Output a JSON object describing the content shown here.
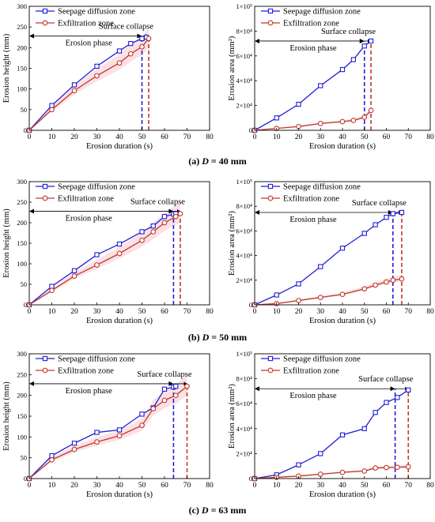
{
  "captions": [
    {
      "prefix": "(a) ",
      "var": "D",
      "rest": " = 40 mm"
    },
    {
      "prefix": "(b) ",
      "var": "D",
      "rest": " = 50 mm"
    },
    {
      "prefix": "(c) ",
      "var": "D",
      "rest": " = 63 mm"
    }
  ],
  "colors": {
    "seepage": "#1f1fd6",
    "exfiltration": "#c0392b",
    "band": "#f6c9cf"
  },
  "chart_data": [
    {
      "type": "line",
      "panel": "a-height",
      "xlabel": "Erosion duration (s)",
      "ylabel": "Erosion height (mm)",
      "xlim": [
        0,
        80
      ],
      "ylim": [
        0,
        300
      ],
      "xticks": [
        "0",
        "10",
        "20",
        "30",
        "40",
        "50",
        "60",
        "70",
        "80"
      ],
      "yticks": [
        "0",
        "50",
        "100",
        "150",
        "200",
        "250",
        "300"
      ],
      "series": [
        {
          "name": "Seepage diffusion zone",
          "x": [
            0,
            10,
            20,
            30,
            40,
            45,
            50,
            52
          ],
          "y": [
            0,
            60,
            110,
            155,
            192,
            210,
            222,
            225
          ]
        },
        {
          "name": "Exfiltration zone",
          "x": [
            0,
            10,
            20,
            30,
            40,
            45,
            50,
            53
          ],
          "y": [
            0,
            50,
            96,
            132,
            163,
            185,
            202,
            222
          ]
        }
      ],
      "vlines": [
        50,
        53
      ],
      "annotations": {
        "phase": "Erosion phase",
        "collapse": "Surface collapse",
        "phase_level": 228
      }
    },
    {
      "type": "line",
      "panel": "a-area",
      "xlabel": "Erosion duration (s)",
      "ylabel": "Erosion area (mm²)",
      "xlim": [
        0,
        80
      ],
      "ylim": [
        0,
        100000
      ],
      "xticks": [
        "0",
        "10",
        "20",
        "30",
        "40",
        "50",
        "60",
        "70",
        "80"
      ],
      "yticks": [
        "0",
        "2×10⁴",
        "4×10⁴",
        "6×10⁴",
        "8×10⁴",
        "1×10⁵"
      ],
      "series": [
        {
          "name": "Seepage diffusion zone",
          "x": [
            0,
            10,
            20,
            30,
            40,
            45,
            50,
            53
          ],
          "y": [
            0,
            10000,
            21000,
            36000,
            49000,
            57000,
            68000,
            72000
          ]
        },
        {
          "name": "Exfiltration zone",
          "x": [
            0,
            10,
            20,
            30,
            40,
            45,
            50,
            53
          ],
          "y": [
            0,
            1500,
            3000,
            5500,
            7000,
            8000,
            10500,
            16000
          ]
        }
      ],
      "vlines": [
        50,
        53
      ],
      "annotations": {
        "phase": "Erosion phase",
        "collapse": "Surface collapse",
        "phase_level": 72000
      }
    },
    {
      "type": "line",
      "panel": "b-height",
      "xlabel": "Erosion duration (s)",
      "ylabel": "Erosion height (mm)",
      "xlim": [
        0,
        80
      ],
      "ylim": [
        0,
        300
      ],
      "xticks": [
        "0",
        "10",
        "20",
        "30",
        "40",
        "50",
        "60",
        "70",
        "80"
      ],
      "yticks": [
        "0",
        "50",
        "100",
        "150",
        "200",
        "250",
        "300"
      ],
      "series": [
        {
          "name": "Seepage diffusion zone",
          "x": [
            0,
            10,
            20,
            30,
            40,
            50,
            55,
            60,
            64,
            65
          ],
          "y": [
            0,
            45,
            83,
            122,
            148,
            178,
            192,
            215,
            221,
            222
          ]
        },
        {
          "name": "Exfiltration zone",
          "x": [
            0,
            10,
            20,
            30,
            40,
            50,
            55,
            60,
            65,
            67
          ],
          "y": [
            0,
            35,
            70,
            97,
            125,
            157,
            178,
            200,
            215,
            222
          ]
        }
      ],
      "vlines": [
        64,
        67
      ],
      "annotations": {
        "phase": "Erosion phase",
        "collapse": "Surface collapse",
        "phase_level": 228
      }
    },
    {
      "type": "line",
      "panel": "b-area",
      "xlabel": "Erosion duration (s)",
      "ylabel": "Erosion area (mm²)",
      "xlim": [
        0,
        80
      ],
      "ylim": [
        0,
        100000
      ],
      "xticks": [
        "0",
        "10",
        "20",
        "30",
        "40",
        "50",
        "60",
        "70",
        "80"
      ],
      "yticks": [
        "0",
        "2×10⁴",
        "4×10⁴",
        "6×10⁴",
        "8×10⁴",
        "1×10⁵"
      ],
      "series": [
        {
          "name": "Seepage diffusion zone",
          "x": [
            0,
            10,
            20,
            30,
            40,
            50,
            55,
            60,
            63,
            67
          ],
          "y": [
            0,
            8000,
            17000,
            31000,
            46000,
            58000,
            65000,
            71000,
            74000,
            75000
          ]
        },
        {
          "name": "Exfiltration zone",
          "x": [
            0,
            10,
            20,
            30,
            40,
            50,
            55,
            60,
            63,
            67
          ],
          "y": [
            0,
            1000,
            3500,
            6000,
            8500,
            13000,
            16000,
            18500,
            20000,
            21000
          ]
        }
      ],
      "vlines": [
        63,
        67
      ],
      "annotations": {
        "phase": "Erosion phase",
        "collapse": "Surface collapse",
        "phase_level": 75000
      }
    },
    {
      "type": "line",
      "panel": "c-height",
      "xlabel": "Erosion duration (s)",
      "ylabel": "Erosion height (mm)",
      "xlim": [
        0,
        80
      ],
      "ylim": [
        0,
        300
      ],
      "xticks": [
        "0",
        "10",
        "20",
        "30",
        "40",
        "50",
        "60",
        "70",
        "80"
      ],
      "yticks": [
        "0",
        "50",
        "100",
        "150",
        "200",
        "250",
        "300"
      ],
      "series": [
        {
          "name": "Seepage diffusion zone",
          "x": [
            0,
            10,
            20,
            30,
            40,
            50,
            55,
            60,
            64,
            65
          ],
          "y": [
            0,
            55,
            85,
            111,
            117,
            155,
            170,
            215,
            220,
            222
          ]
        },
        {
          "name": "Exfiltration zone",
          "x": [
            0,
            10,
            20,
            30,
            40,
            50,
            55,
            60,
            65,
            70
          ],
          "y": [
            0,
            45,
            70,
            88,
            103,
            128,
            168,
            188,
            200,
            222
          ]
        }
      ],
      "vlines": [
        64,
        70
      ],
      "annotations": {
        "phase": "Erosion phase",
        "collapse": "Surface collapse",
        "phase_level": 228
      }
    },
    {
      "type": "line",
      "panel": "c-area",
      "xlabel": "Erosion duration (s)",
      "ylabel": "Erosion area (mm²)",
      "xlim": [
        0,
        80
      ],
      "ylim": [
        0,
        100000
      ],
      "xticks": [
        "0",
        "10",
        "20",
        "30",
        "40",
        "50",
        "60",
        "70",
        "80"
      ],
      "yticks": [
        "0",
        "2×10⁴",
        "4×10⁴",
        "6×10⁴",
        "8×10⁴",
        "1×10⁵"
      ],
      "series": [
        {
          "name": "Seepage diffusion zone",
          "x": [
            0,
            10,
            20,
            30,
            40,
            50,
            55,
            60,
            65,
            70
          ],
          "y": [
            0,
            3000,
            11000,
            20000,
            35000,
            40000,
            53000,
            61000,
            65000,
            71000
          ]
        },
        {
          "name": "Exfiltration zone",
          "x": [
            0,
            10,
            20,
            30,
            40,
            50,
            55,
            60,
            65,
            70
          ],
          "y": [
            0,
            1000,
            2000,
            3500,
            5000,
            6000,
            8500,
            8800,
            9000,
            9500
          ]
        }
      ],
      "vlines": [
        64,
        70
      ],
      "annotations": {
        "phase": "Erosion phase",
        "collapse": "Surface collapse",
        "phase_level": 72000
      }
    }
  ]
}
